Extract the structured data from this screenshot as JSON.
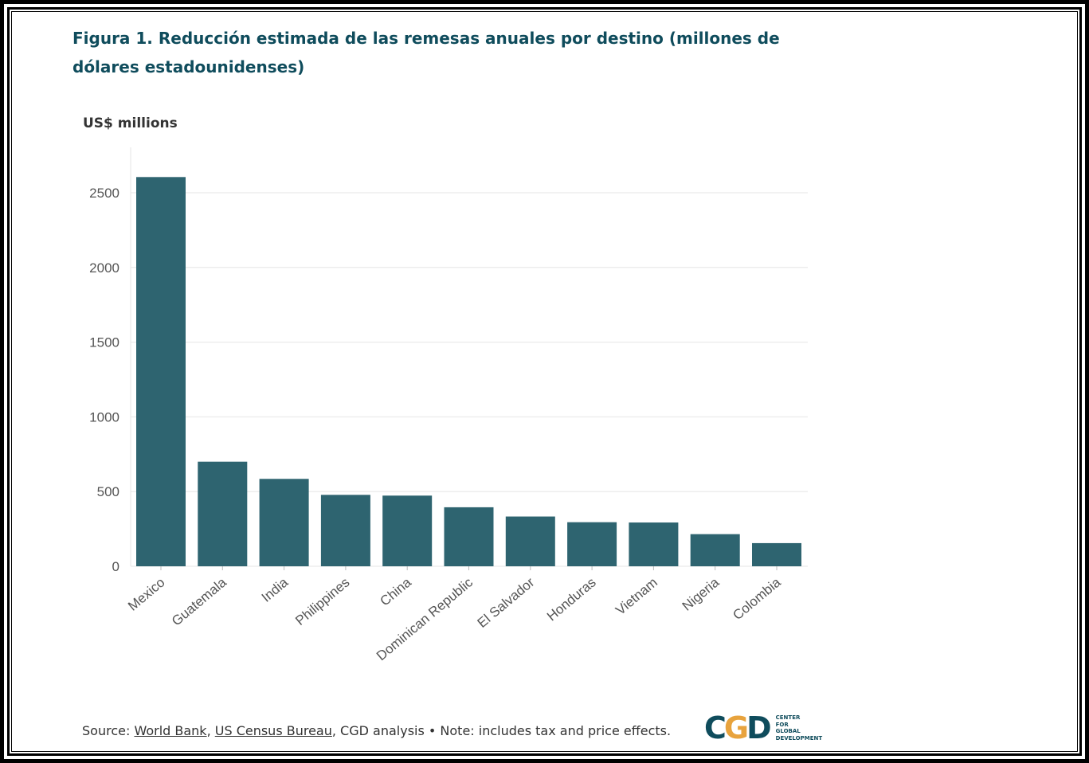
{
  "title": "Figura 1. Reducción estimada de las remesas anuales por destino (millones de dólares estadounidenses)",
  "footer": {
    "source_prefix": "Source: ",
    "link1": "World Bank",
    "sep1": ", ",
    "link2": "US Census Bureau",
    "rest": ", CGD analysis • Note: includes tax and price effects."
  },
  "logo": {
    "mark": "CGD",
    "line1": "CENTER",
    "line2": "FOR",
    "line3": "GLOBAL",
    "line4": "DEVELOPMENT"
  },
  "chart_data": {
    "type": "bar",
    "title": "",
    "ylabel": "US$ millions",
    "xlabel": "",
    "categories": [
      "Mexico",
      "Guatemala",
      "India",
      "Philippines",
      "China",
      "Dominican Republic",
      "El Salvador",
      "Honduras",
      "Vietnam",
      "Nigeria",
      "Colombia"
    ],
    "values": [
      2605,
      700,
      585,
      478,
      473,
      395,
      333,
      295,
      293,
      215,
      155
    ],
    "ylim": [
      0,
      2800
    ],
    "yticks": [
      0,
      500,
      1000,
      1500,
      2000,
      2500
    ],
    "grid": true,
    "bar_color": "#2e6470"
  }
}
